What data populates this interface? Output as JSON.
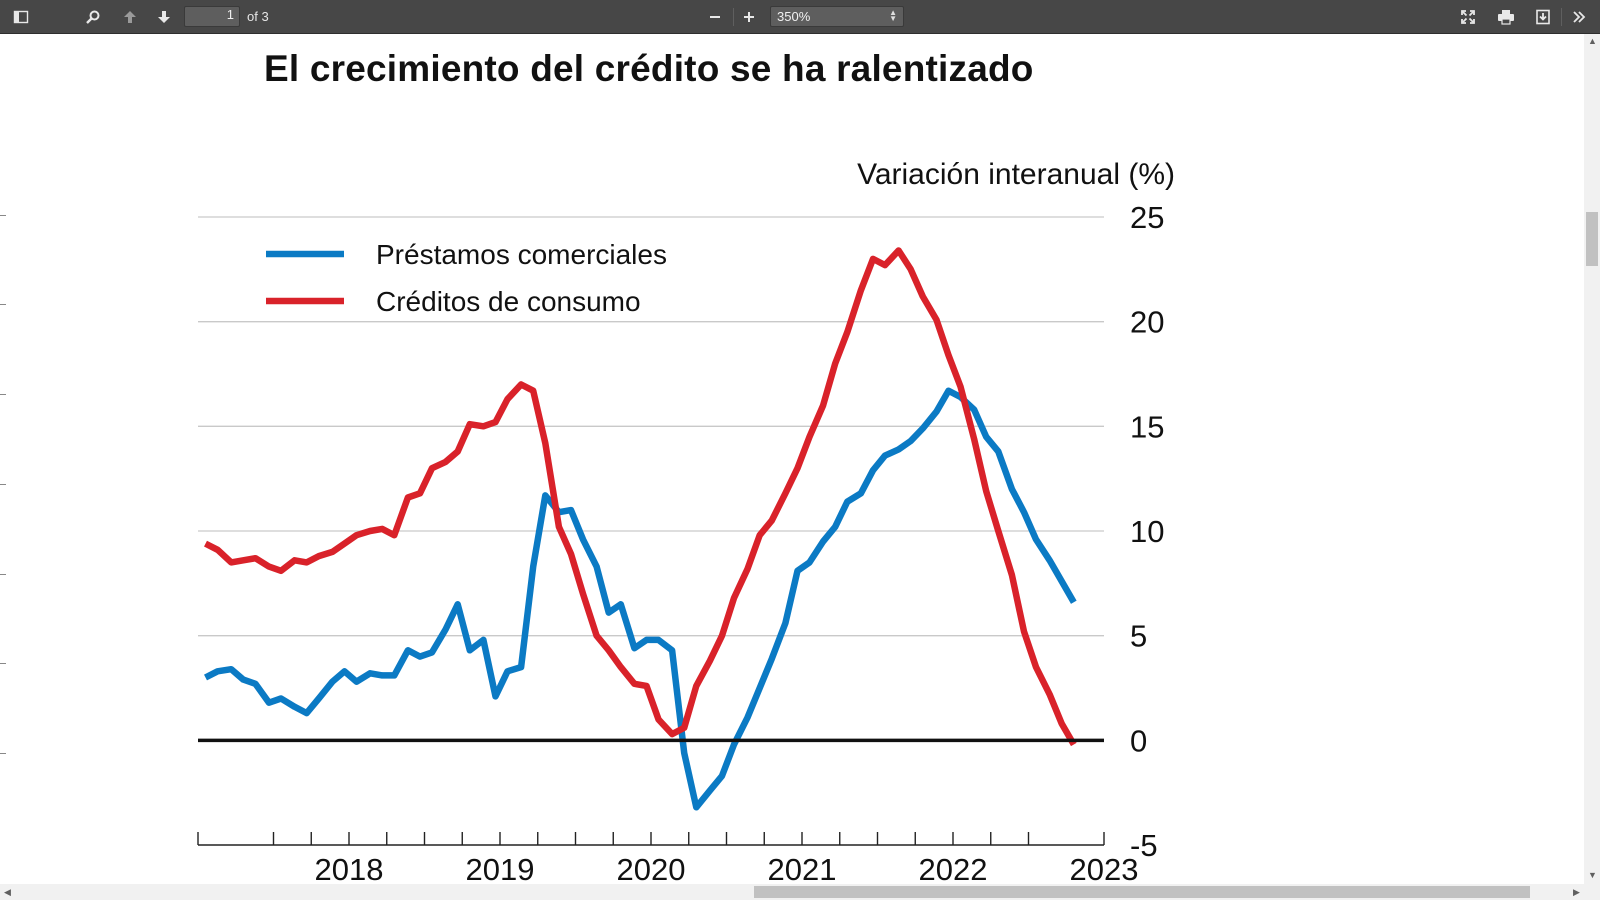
{
  "viewer": {
    "page_current": "1",
    "page_total_label": "of 3",
    "zoom": "350%",
    "icons": [
      "sidebar-toggle-icon",
      "search-icon",
      "previous-page-icon",
      "next-page-icon",
      "zoom-out-icon",
      "zoom-in-icon",
      "presentation-mode-icon",
      "print-icon",
      "download-icon",
      "tools-icon"
    ]
  },
  "document": {
    "title": "El crecimiento del crédito se ha ralentizado"
  },
  "colors": {
    "blue": "#0b7ac4",
    "red": "#d9222a",
    "toolbar": "#474747"
  },
  "chart_data": {
    "type": "line",
    "title": "El crecimiento del crédito se ha ralentizado",
    "ylabel": "Variación interanual (%)",
    "xlabel": "",
    "ylim": [
      -5,
      25
    ],
    "yticks": [
      -5,
      0,
      5,
      10,
      15,
      20,
      25
    ],
    "xlim": [
      2017.5,
      2023.5
    ],
    "xtick_labels": [
      "2018",
      "2019",
      "2020",
      "2021",
      "2022",
      "2023"
    ],
    "grid": true,
    "legend_position": "top-left",
    "series": [
      {
        "name": "Préstamos comerciales",
        "color": "#0b7ac4",
        "points": [
          [
            2017.55,
            3.0
          ],
          [
            2017.63,
            3.3
          ],
          [
            2017.72,
            3.4
          ],
          [
            2017.8,
            2.9
          ],
          [
            2017.88,
            2.7
          ],
          [
            2017.97,
            1.8
          ],
          [
            2018.05,
            2.0
          ],
          [
            2018.14,
            1.6
          ],
          [
            2018.22,
            1.3
          ],
          [
            2018.3,
            2.0
          ],
          [
            2018.39,
            2.8
          ],
          [
            2018.47,
            3.3
          ],
          [
            2018.55,
            2.8
          ],
          [
            2018.64,
            3.2
          ],
          [
            2018.72,
            3.1
          ],
          [
            2018.8,
            3.1
          ],
          [
            2018.89,
            4.3
          ],
          [
            2018.97,
            4.0
          ],
          [
            2019.05,
            4.2
          ],
          [
            2019.14,
            5.3
          ],
          [
            2019.22,
            6.5
          ],
          [
            2019.3,
            4.3
          ],
          [
            2019.39,
            4.8
          ],
          [
            2019.47,
            2.1
          ],
          [
            2019.55,
            3.3
          ],
          [
            2019.64,
            3.5
          ],
          [
            2019.72,
            8.3
          ],
          [
            2019.8,
            11.7
          ],
          [
            2019.89,
            10.9
          ],
          [
            2019.97,
            11.0
          ],
          [
            2020.05,
            9.6
          ],
          [
            2020.14,
            8.3
          ],
          [
            2020.22,
            6.1
          ],
          [
            2020.3,
            6.5
          ],
          [
            2020.39,
            4.4
          ],
          [
            2020.47,
            4.8
          ],
          [
            2020.55,
            4.8
          ],
          [
            2020.64,
            4.3
          ],
          [
            2020.72,
            -0.6
          ],
          [
            2020.8,
            -3.2
          ],
          [
            2020.89,
            -2.4
          ],
          [
            2020.97,
            -1.7
          ],
          [
            2021.05,
            -0.2
          ],
          [
            2021.14,
            1.1
          ],
          [
            2021.22,
            2.5
          ],
          [
            2021.3,
            3.9
          ],
          [
            2021.39,
            5.6
          ],
          [
            2021.47,
            8.1
          ],
          [
            2021.55,
            8.5
          ],
          [
            2021.64,
            9.5
          ],
          [
            2021.72,
            10.2
          ],
          [
            2021.8,
            11.4
          ],
          [
            2021.89,
            11.8
          ],
          [
            2021.97,
            12.9
          ],
          [
            2022.05,
            13.6
          ],
          [
            2022.14,
            13.9
          ],
          [
            2022.22,
            14.3
          ],
          [
            2022.3,
            14.9
          ],
          [
            2022.39,
            15.7
          ],
          [
            2022.47,
            16.7
          ],
          [
            2022.55,
            16.4
          ],
          [
            2022.64,
            15.8
          ],
          [
            2022.72,
            14.5
          ],
          [
            2022.8,
            13.8
          ],
          [
            2022.89,
            12.0
          ],
          [
            2022.97,
            10.9
          ],
          [
            2023.05,
            9.6
          ],
          [
            2023.14,
            8.6
          ],
          [
            2023.22,
            7.6
          ],
          [
            2023.3,
            6.6
          ]
        ]
      },
      {
        "name": "Créditos de consumo",
        "color": "#d9222a",
        "points": [
          [
            2017.55,
            9.4
          ],
          [
            2017.63,
            9.1
          ],
          [
            2017.72,
            8.5
          ],
          [
            2017.8,
            8.6
          ],
          [
            2017.88,
            8.7
          ],
          [
            2017.97,
            8.3
          ],
          [
            2018.05,
            8.1
          ],
          [
            2018.14,
            8.6
          ],
          [
            2018.22,
            8.5
          ],
          [
            2018.3,
            8.8
          ],
          [
            2018.39,
            9.0
          ],
          [
            2018.47,
            9.4
          ],
          [
            2018.55,
            9.8
          ],
          [
            2018.64,
            10.0
          ],
          [
            2018.72,
            10.1
          ],
          [
            2018.8,
            9.8
          ],
          [
            2018.89,
            11.6
          ],
          [
            2018.97,
            11.8
          ],
          [
            2019.05,
            13.0
          ],
          [
            2019.14,
            13.3
          ],
          [
            2019.22,
            13.8
          ],
          [
            2019.3,
            15.1
          ],
          [
            2019.39,
            15.0
          ],
          [
            2019.47,
            15.2
          ],
          [
            2019.55,
            16.3
          ],
          [
            2019.64,
            17.0
          ],
          [
            2019.72,
            16.7
          ],
          [
            2019.8,
            14.2
          ],
          [
            2019.89,
            10.2
          ],
          [
            2019.97,
            8.9
          ],
          [
            2020.05,
            7.0
          ],
          [
            2020.14,
            5.0
          ],
          [
            2020.22,
            4.3
          ],
          [
            2020.3,
            3.5
          ],
          [
            2020.39,
            2.7
          ],
          [
            2020.47,
            2.6
          ],
          [
            2020.55,
            1.0
          ],
          [
            2020.64,
            0.3
          ],
          [
            2020.72,
            0.6
          ],
          [
            2020.8,
            2.6
          ],
          [
            2020.89,
            3.8
          ],
          [
            2020.97,
            5.0
          ],
          [
            2021.05,
            6.8
          ],
          [
            2021.14,
            8.2
          ],
          [
            2021.22,
            9.8
          ],
          [
            2021.3,
            10.5
          ],
          [
            2021.39,
            11.8
          ],
          [
            2021.47,
            13.0
          ],
          [
            2021.55,
            14.5
          ],
          [
            2021.64,
            16.0
          ],
          [
            2021.72,
            18.0
          ],
          [
            2021.8,
            19.5
          ],
          [
            2021.89,
            21.5
          ],
          [
            2021.97,
            23.0
          ],
          [
            2022.05,
            22.7
          ],
          [
            2022.14,
            23.4
          ],
          [
            2022.22,
            22.5
          ],
          [
            2022.3,
            21.2
          ],
          [
            2022.39,
            20.1
          ],
          [
            2022.47,
            18.4
          ],
          [
            2022.55,
            16.9
          ],
          [
            2022.64,
            14.4
          ],
          [
            2022.72,
            11.9
          ],
          [
            2022.8,
            10.0
          ],
          [
            2022.89,
            7.9
          ],
          [
            2022.97,
            5.2
          ],
          [
            2023.05,
            3.5
          ],
          [
            2023.14,
            2.2
          ],
          [
            2023.22,
            0.8
          ],
          [
            2023.3,
            -0.2
          ]
        ]
      }
    ]
  }
}
